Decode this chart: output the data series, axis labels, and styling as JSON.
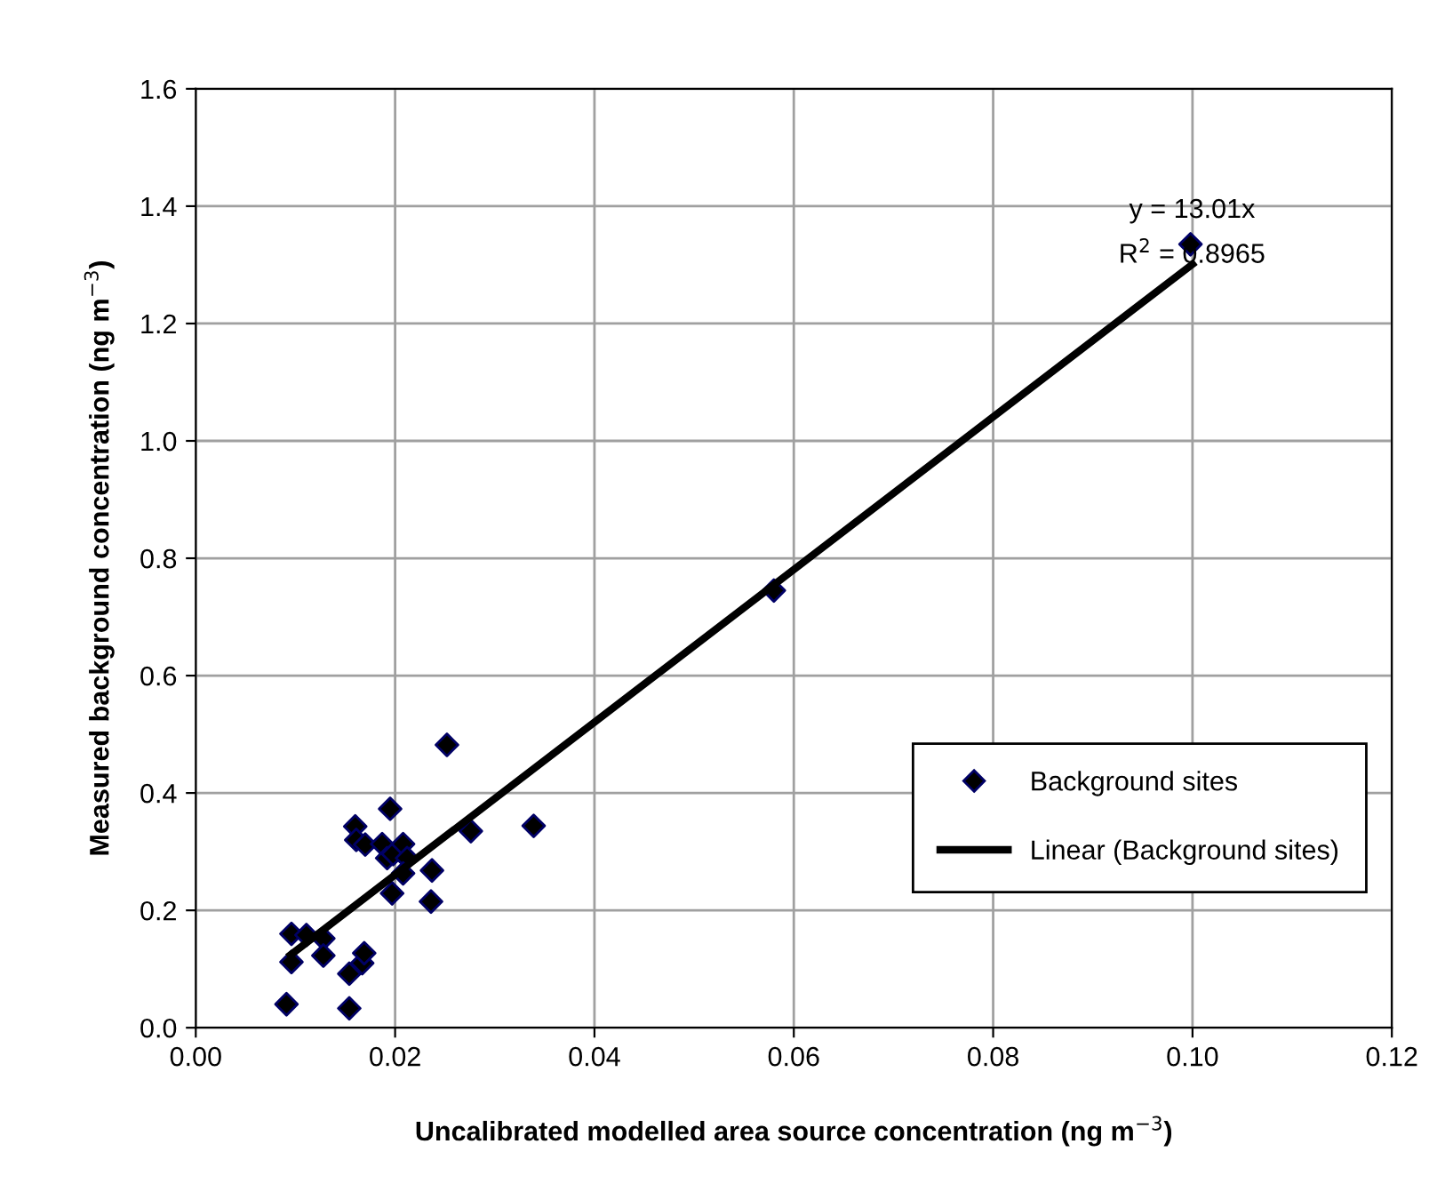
{
  "chart_data": {
    "type": "scatter",
    "xlabel": "Uncalibrated modelled area source concentration (ng m$^{−3}$)",
    "ylabel": "Measured background concentration (ng m$^{−3}$)",
    "series": [
      {
        "name": "Background sites",
        "color": "#000066",
        "marker": "diamond",
        "x": [
          0.0091,
          0.0096,
          0.0096,
          0.0111,
          0.0128,
          0.0128,
          0.0154,
          0.0154,
          0.0167,
          0.0169,
          0.016,
          0.0161,
          0.017,
          0.0187,
          0.0195,
          0.0192,
          0.0198,
          0.0208,
          0.0212,
          0.0208,
          0.0197,
          0.0237,
          0.0236,
          0.0252,
          0.0276,
          0.0339,
          0.058,
          0.0998
        ],
        "values": [
          0.04,
          0.112,
          0.16,
          0.158,
          0.152,
          0.123,
          0.092,
          0.033,
          0.11,
          0.127,
          0.343,
          0.32,
          0.312,
          0.313,
          0.373,
          0.289,
          0.296,
          0.313,
          0.289,
          0.263,
          0.229,
          0.268,
          0.215,
          0.482,
          0.335,
          0.344,
          0.745,
          1.335
        ]
      },
      {
        "name": "Linear (Background sites)",
        "type": "line",
        "color": "#000000",
        "line_style": "solid",
        "marker": "none",
        "x": [
          0.0095,
          0.1
        ],
        "values": [
          0.124,
          1.301
        ]
      }
    ],
    "annotations": [
      "y = 13.01x",
      "R$^{2}$ = 0.8965"
    ],
    "xlim": [
      0,
      0.12
    ],
    "xticks": [
      {
        "value": 0,
        "label": "0.00"
      },
      {
        "value": 0.02,
        "label": "0.02"
      },
      {
        "value": 0.04,
        "label": "0.04"
      },
      {
        "value": 0.06,
        "label": "0.06"
      },
      {
        "value": 0.08,
        "label": "0.08"
      },
      {
        "value": 0.1,
        "label": "0.10"
      },
      {
        "value": 0.12,
        "label": "0.12"
      }
    ],
    "ylim": [
      0,
      1.6
    ],
    "yticks": [
      {
        "value": 0,
        "label": "0.0"
      },
      {
        "value": 0.2,
        "label": "0.2"
      },
      {
        "value": 0.4,
        "label": "0.4"
      },
      {
        "value": 0.6,
        "label": "0.6"
      },
      {
        "value": 0.8,
        "label": "0.8"
      },
      {
        "value": 1.0,
        "label": "1.0"
      },
      {
        "value": 1.2,
        "label": "1.2"
      },
      {
        "value": 1.4,
        "label": "1.4"
      },
      {
        "value": 1.6,
        "label": "1.6"
      }
    ],
    "grid": true,
    "legend": "bottom right"
  }
}
